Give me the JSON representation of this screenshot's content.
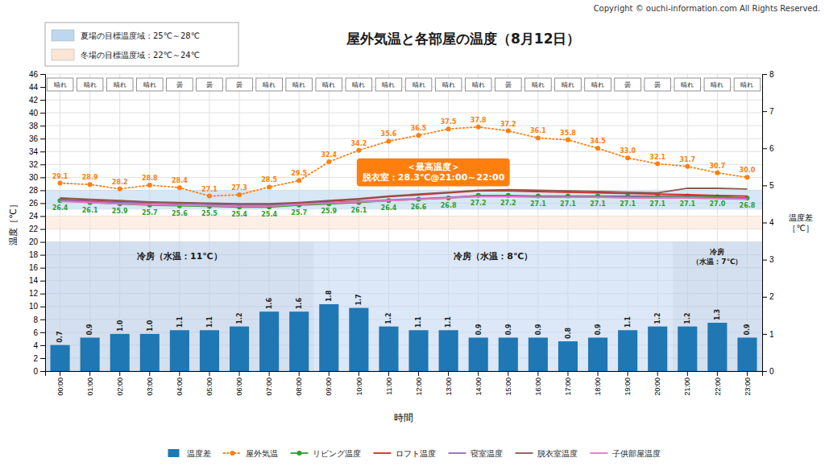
{
  "chart_data": {
    "type": "line",
    "title": "屋外気温と各部屋の温度（8月12日）",
    "copyright": "Copyright © ouchi-information.com All Rights Reserved.",
    "xlabel": "時間",
    "ylabel": "温度［℃］",
    "y2label": "温度差\n［℃］",
    "categories": [
      "00:00",
      "01:00",
      "02:00",
      "03:00",
      "04:00",
      "05:00",
      "06:00",
      "07:00",
      "08:00",
      "09:00",
      "10:00",
      "11:00",
      "12:00",
      "13:00",
      "14:00",
      "15:00",
      "16:00",
      "17:00",
      "18:00",
      "19:00",
      "20:00",
      "21:00",
      "22:00",
      "23:00"
    ],
    "weather": [
      "晴れ",
      "晴れ",
      "晴れ",
      "晴れ",
      "曇",
      "曇",
      "曇",
      "晴れ",
      "晴れ",
      "晴れ",
      "晴れ",
      "晴れ",
      "晴れ",
      "晴れ",
      "晴れ",
      "曇",
      "晴れ",
      "晴れ",
      "晴れ",
      "曇",
      "曇",
      "晴れ",
      "晴れ",
      "晴れ"
    ],
    "series": [
      {
        "name": "温度差",
        "type": "bar",
        "axis": "y2",
        "data_labels": true,
        "values": [
          0.7,
          0.9,
          1.0,
          1.0,
          1.1,
          1.1,
          1.2,
          1.6,
          1.6,
          1.8,
          1.7,
          1.2,
          1.1,
          1.1,
          0.9,
          0.9,
          0.9,
          0.8,
          0.9,
          1.1,
          1.2,
          1.2,
          1.3,
          0.9
        ],
        "value_labels": [
          "0.7",
          "0.9",
          "1.0",
          "1.0",
          "1.1",
          "1.1",
          "1.2",
          "1.6",
          "1.6",
          "1.8",
          "1.7",
          "1.2",
          "1.1",
          "1.1",
          "0.9",
          "0.9",
          "0.9",
          "0.8",
          "0.9",
          "1.1",
          "1.2",
          "1.2",
          "1.3",
          "0.9"
        ]
      },
      {
        "name": "屋外気温",
        "marker": "circle",
        "line_style": "dotted",
        "data_labels": true,
        "values": [
          29.1,
          28.9,
          28.2,
          28.8,
          28.4,
          27.1,
          27.3,
          28.5,
          29.5,
          32.4,
          34.2,
          35.6,
          36.5,
          37.5,
          37.8,
          37.2,
          36.1,
          35.8,
          34.5,
          33.0,
          32.1,
          31.7,
          30.7,
          30.0
        ],
        "value_labels": [
          "29.1",
          "28.9",
          "28.2",
          "28.8",
          "28.4",
          "27.1",
          "27.3",
          "28.5",
          "29.5",
          "32.4",
          "34.2",
          "35.6",
          "36.5",
          "37.5",
          "37.8",
          "37.2",
          "36.1",
          "35.8",
          "34.5",
          "33.0",
          "32.1",
          "31.7",
          "30.7",
          "30.0"
        ]
      },
      {
        "name": "リビング温度",
        "marker": "circle",
        "data_labels": true,
        "values": [
          26.4,
          26.1,
          25.9,
          25.7,
          25.6,
          25.5,
          25.4,
          25.4,
          25.7,
          25.9,
          26.1,
          26.4,
          26.6,
          26.8,
          27.2,
          27.2,
          27.1,
          27.1,
          27.1,
          27.1,
          27.1,
          27.1,
          27.0,
          26.8
        ],
        "value_labels": [
          "26.4",
          "26.1",
          "25.9",
          "25.7",
          "25.6",
          "25.5",
          "25.4",
          "25.4",
          "25.7",
          "25.9",
          "26.1",
          "26.4",
          "26.6",
          "26.8",
          "27.2",
          "27.2",
          "27.1",
          "27.1",
          "27.1",
          "27.1",
          "27.1",
          "27.1",
          "27.0",
          "26.8"
        ]
      },
      {
        "name": "ロフト温度",
        "values": [
          26.6,
          26.4,
          26.2,
          26.1,
          26.0,
          25.9,
          25.8,
          25.8,
          26.0,
          26.3,
          26.6,
          27.0,
          27.3,
          27.6,
          27.9,
          27.9,
          27.8,
          27.7,
          27.6,
          27.5,
          27.4,
          27.3,
          27.2,
          27.1
        ]
      },
      {
        "name": "寝室温度",
        "values": [
          26.5,
          26.3,
          26.1,
          26.0,
          25.9,
          25.8,
          25.7,
          25.7,
          25.9,
          26.1,
          26.3,
          26.5,
          26.7,
          26.9,
          27.1,
          27.1,
          27.0,
          27.0,
          27.0,
          27.0,
          26.9,
          26.9,
          26.8,
          26.7
        ]
      },
      {
        "name": "脱衣室温度",
        "values": [
          26.8,
          26.6,
          26.4,
          26.2,
          26.1,
          26.0,
          25.9,
          25.9,
          26.1,
          26.4,
          26.7,
          27.1,
          27.4,
          27.7,
          28.0,
          28.1,
          28.0,
          27.9,
          27.8,
          27.7,
          27.6,
          28.3,
          28.3,
          28.2
        ]
      },
      {
        "name": "子供部屋温度",
        "values": [
          26.3,
          26.1,
          25.9,
          25.8,
          25.7,
          25.6,
          25.5,
          25.5,
          25.8,
          26.0,
          26.2,
          26.4,
          26.6,
          26.8,
          27.0,
          27.0,
          26.9,
          26.9,
          26.9,
          26.8,
          26.8,
          26.8,
          26.7,
          26.6
        ]
      }
    ],
    "ylim": [
      0,
      46
    ],
    "yticks": [
      0,
      2,
      4,
      6,
      8,
      10,
      12,
      14,
      16,
      18,
      20,
      22,
      24,
      26,
      28,
      30,
      32,
      34,
      36,
      38,
      40,
      42,
      44,
      46
    ],
    "y2lim": [
      0,
      8
    ],
    "y2ticks": [
      0,
      1,
      2,
      3,
      4,
      5,
      6,
      7,
      8
    ],
    "grid": true,
    "legend": "bottom",
    "bands": [
      {
        "label": "夏場の目標温度域：25℃～28℃",
        "y_range": [
          25,
          28
        ],
        "color": "#bdd7ee"
      },
      {
        "label": "冬場の目標温度域：22℃～24℃",
        "y_range": [
          22,
          24
        ],
        "color": "#fce4d6"
      }
    ],
    "zones": [
      {
        "label": "冷房（水温：11℃）",
        "from": "00:00",
        "to": "08:00",
        "y_range": [
          0,
          20
        ],
        "color": "#b8cce4"
      },
      {
        "label": "冷房（水温：8℃）",
        "from": "09:00",
        "to": "20:00",
        "y_range": [
          0,
          20
        ],
        "color": "#c5d9f1"
      },
      {
        "label": "冷房\n（水温：7℃）",
        "from": "21:00",
        "to": "23:00",
        "y_range": [
          0,
          20
        ],
        "color": "#b8cce4"
      }
    ],
    "annotation": "＜最高温度＞\n脱衣室：28.3℃@21:00～22:00"
  }
}
